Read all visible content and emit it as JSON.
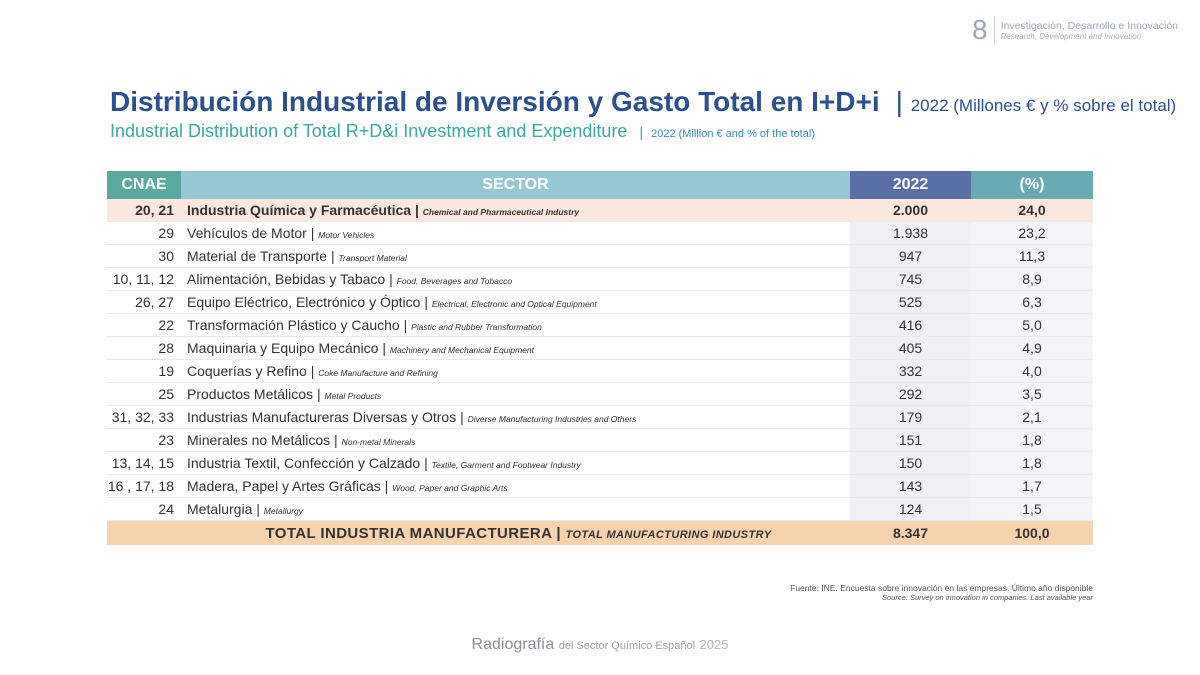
{
  "header": {
    "page_number": "8",
    "section_es": "Investigación, Desarrollo e Innovación",
    "section_en": "Research, Development and Innovation"
  },
  "title": {
    "main_es": "Distribución Industrial de Inversión y Gasto Total en I+D+i",
    "sep": "|",
    "sub_es": "2022 (Millones € y % sobre el total)",
    "main_en": "Industrial Distribution of Total R+D&i Investment and Expenditure",
    "sub_en": "2022 (Million € and % of the total)"
  },
  "table": {
    "columns": [
      "CNAE",
      "SECTOR",
      "2022",
      "(%)"
    ],
    "rows": [
      {
        "cnae": "20, 21",
        "es": "Industria Química y Farmacéutica",
        "en": "Chemical and Pharmaceutical Industry",
        "value": "2.000",
        "pct": "24,0",
        "highlight": true
      },
      {
        "cnae": "29",
        "es": "Vehículos de Motor",
        "en": "Motor Vehicles",
        "value": "1.938",
        "pct": "23,2"
      },
      {
        "cnae": "30",
        "es": "Material de Transporte",
        "en": "Transport Material",
        "value": "947",
        "pct": "11,3"
      },
      {
        "cnae": "10, 11, 12",
        "es": "Alimentación, Bebidas y Tabaco",
        "en": "Food, Beverages and Tobacco",
        "value": "745",
        "pct": "8,9"
      },
      {
        "cnae": "26, 27",
        "es": "Equipo Eléctrico, Electrónico y Óptico",
        "en": "Electrical, Electronic and Optical Equipment",
        "value": "525",
        "pct": "6,3"
      },
      {
        "cnae": "22",
        "es": "Transformación Plástico y Caucho",
        "en": "Plastic and Rubber Transformation",
        "value": "416",
        "pct": "5,0"
      },
      {
        "cnae": "28",
        "es": "Maquinaria y Equipo Mecánico",
        "en": "Machinery and Mechanical Equipment",
        "value": "405",
        "pct": "4,9"
      },
      {
        "cnae": "19",
        "es": "Coquerías y Refino",
        "en": "Coke Manufacture and Refining",
        "value": "332",
        "pct": "4,0"
      },
      {
        "cnae": "25",
        "es": "Productos Metálicos",
        "en": "Metal Products",
        "value": "292",
        "pct": "3,5"
      },
      {
        "cnae": "31, 32, 33",
        "es": "Industrias Manufactureras Diversas y Otros",
        "en": "Diverse Manufacturing Industries and Others",
        "value": "179",
        "pct": "2,1"
      },
      {
        "cnae": "23",
        "es": "Minerales no Metálicos",
        "en": "Non-metal Minerals",
        "value": "151",
        "pct": "1,8"
      },
      {
        "cnae": "13, 14, 15",
        "es": "Industria Textil, Confección y Calzado",
        "en": "Textile, Garment and Footwear Industry",
        "value": "150",
        "pct": "1,8"
      },
      {
        "cnae": "16 , 17, 18",
        "es": "Madera, Papel y Artes Gráficas",
        "en": "Wood, Paper and Graphic Arts",
        "value": "143",
        "pct": "1,7"
      },
      {
        "cnae": "24",
        "es": "Metalurgia",
        "en": "Metallurgy",
        "value": "124",
        "pct": "1,5"
      }
    ],
    "total": {
      "es": "TOTAL INDUSTRIA MANUFACTURERA",
      "en": "TOTAL MANUFACTURING INDUSTRY",
      "value": "8.347",
      "pct": "100,0"
    }
  },
  "source": {
    "es": "Fuente: INE. Encuesta sobre innovación en las empresas. Último año disponible",
    "en": "Source: Survey on innovation in companies. Last available year"
  },
  "footer": {
    "a": "Radiografía",
    "b": "del Sector Químico Español",
    "c": "2025"
  },
  "colors": {
    "title": "#2c4f8f",
    "subtitle": "#3aa7a0",
    "highlight_row": "#fbe8de",
    "total_row": "#f6d2ad"
  }
}
